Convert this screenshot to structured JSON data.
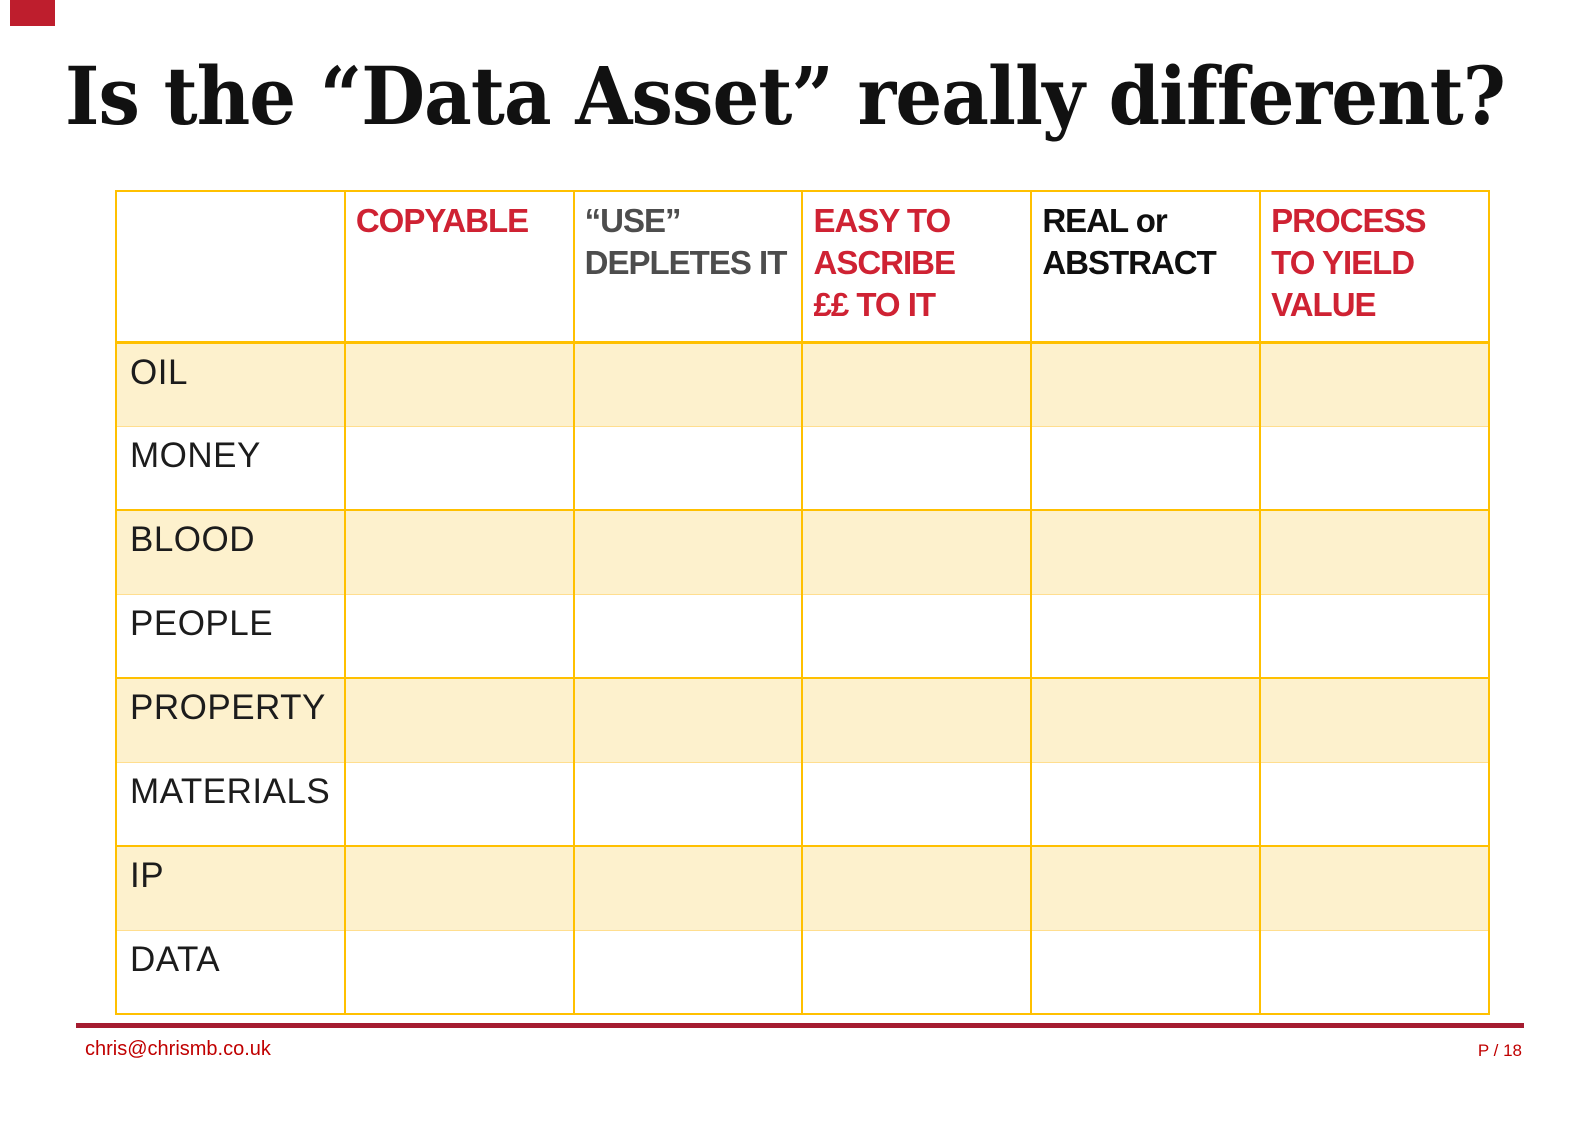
{
  "slide": {
    "title": "Is the “Data Asset” really different?",
    "colors": {
      "accent_red": "#cf2233",
      "corner_accent_red": "#be1e2d",
      "header_gray": "#4d4d4d",
      "header_black": "#0f0f0f",
      "table_border_gold": "#ffc000",
      "row_separator_pale_gold": "#ffde8f",
      "row_fill_cream": "#fdf1cd",
      "footer_rule_red": "#a51c30",
      "footer_text_red": "#c00000"
    }
  },
  "table": {
    "columns": [
      {
        "label": "",
        "color": "none"
      },
      {
        "label": "COPYABLE",
        "color": "red"
      },
      {
        "label": "“USE”\nDEPLETES IT",
        "color": "gray"
      },
      {
        "label": "EASY TO\nASCRIBE\n££ TO IT",
        "color": "red"
      },
      {
        "label": "REAL or\nABSTRACT",
        "color": "black"
      },
      {
        "label": "PROCESS\nTO YIELD\nVALUE",
        "color": "red"
      }
    ],
    "rows": [
      {
        "label": "OIL",
        "cells": [
          "",
          "",
          "",
          "",
          ""
        ]
      },
      {
        "label": "MONEY",
        "cells": [
          "",
          "",
          "",
          "",
          ""
        ]
      },
      {
        "label": "BLOOD",
        "cells": [
          "",
          "",
          "",
          "",
          ""
        ]
      },
      {
        "label": "PEOPLE",
        "cells": [
          "",
          "",
          "",
          "",
          ""
        ]
      },
      {
        "label": "PROPERTY",
        "cells": [
          "",
          "",
          "",
          "",
          ""
        ]
      },
      {
        "label": "MATERIALS",
        "cells": [
          "",
          "",
          "",
          "",
          ""
        ]
      },
      {
        "label": "IP",
        "cells": [
          "",
          "",
          "",
          "",
          ""
        ]
      },
      {
        "label": "DATA",
        "cells": [
          "",
          "",
          "",
          "",
          ""
        ]
      }
    ]
  },
  "footer": {
    "email": "chris@chrismb.co.uk",
    "page": "P / 18"
  }
}
